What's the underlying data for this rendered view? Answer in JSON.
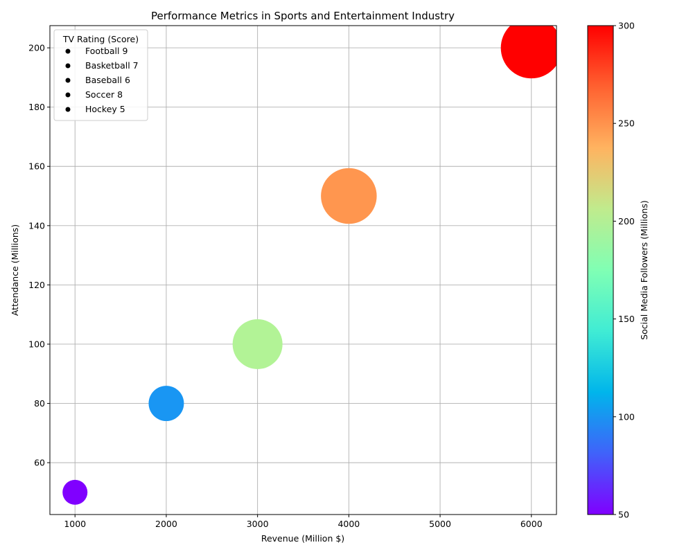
{
  "chart_data": {
    "type": "scatter",
    "title": "Performance Metrics in Sports and Entertainment Industry",
    "xlabel": "Revenue (Million $)",
    "ylabel": "Attendance (Millions)",
    "xlim": [
      725,
      6275
    ],
    "ylim": [
      42.5,
      207.5
    ],
    "xticks": [
      1000,
      2000,
      3000,
      4000,
      5000,
      6000
    ],
    "yticks": [
      60,
      80,
      100,
      120,
      140,
      160,
      180,
      200
    ],
    "grid": true,
    "colormap": "rainbow",
    "points": [
      {
        "revenue": 6000,
        "attendance": 200,
        "social_followers": 300,
        "color": "#ff0000"
      },
      {
        "revenue": 4000,
        "attendance": 150,
        "social_followers": 250,
        "color": "#ff964f"
      },
      {
        "revenue": 3000,
        "attendance": 100,
        "social_followers": 200,
        "color": "#b2f396"
      },
      {
        "revenue": 2000,
        "attendance": 80,
        "social_followers": 100,
        "color": "#1996f3"
      },
      {
        "revenue": 1000,
        "attendance": 50,
        "social_followers": 50,
        "color": "#8000ff"
      }
    ],
    "legend": {
      "title": "TV Rating (Score)",
      "position": "upper-left",
      "entries": [
        {
          "label": "Football 9"
        },
        {
          "label": "Basketball 7"
        },
        {
          "label": "Baseball 6"
        },
        {
          "label": "Soccer 8"
        },
        {
          "label": "Hockey 5"
        }
      ]
    },
    "colorbar": {
      "label": "Social Media Followers (Millions)",
      "range": [
        50,
        300
      ],
      "ticks": [
        50,
        100,
        150,
        200,
        250,
        300
      ]
    }
  }
}
